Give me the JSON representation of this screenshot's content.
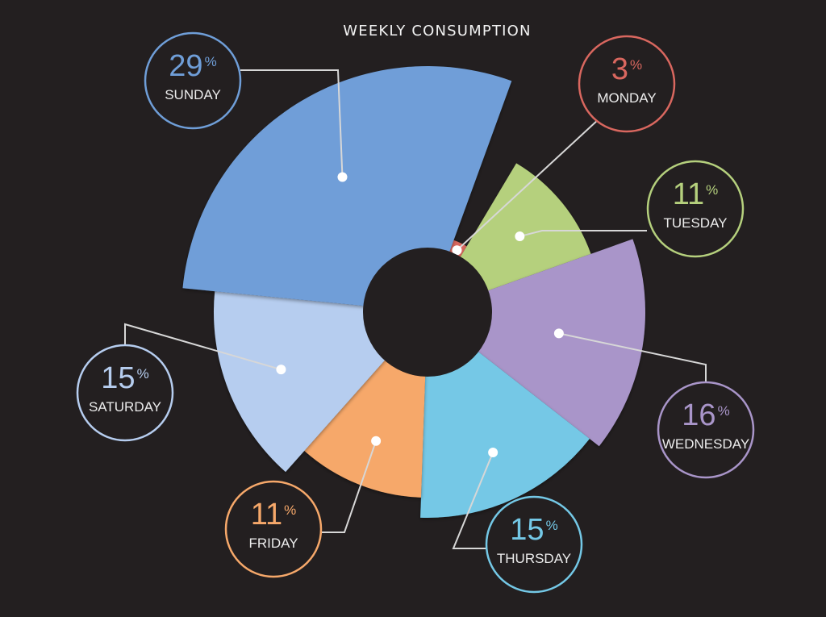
{
  "chart_data": {
    "type": "pie",
    "title": "WEEKLY CONSUMPTION",
    "slices": [
      {
        "label": "MONDAY",
        "value": 3,
        "display": "3",
        "unit": "%",
        "color": "#d9675f"
      },
      {
        "label": "TUESDAY",
        "value": 11,
        "display": "11",
        "unit": "%",
        "color": "#b5d07d"
      },
      {
        "label": "WEDNESDAY",
        "value": 16,
        "display": "16",
        "unit": "%",
        "color": "#a995c9"
      },
      {
        "label": "THURSDAY",
        "value": 15,
        "display": "15",
        "unit": "%",
        "color": "#74c8e6"
      },
      {
        "label": "FRIDAY",
        "value": 11,
        "display": "11",
        "unit": "%",
        "color": "#f6a86a"
      },
      {
        "label": "SATURDAY",
        "value": 15,
        "display": "15",
        "unit": "%",
        "color": "#b6cdef"
      },
      {
        "label": "SUNDAY",
        "value": 29,
        "display": "29",
        "unit": "%",
        "color": "#6f9ed8"
      }
    ]
  },
  "theme": {
    "background": "#231f20",
    "text": "#f2f2f2",
    "label_text": "#ececec",
    "connector": "#d7d7d7"
  }
}
